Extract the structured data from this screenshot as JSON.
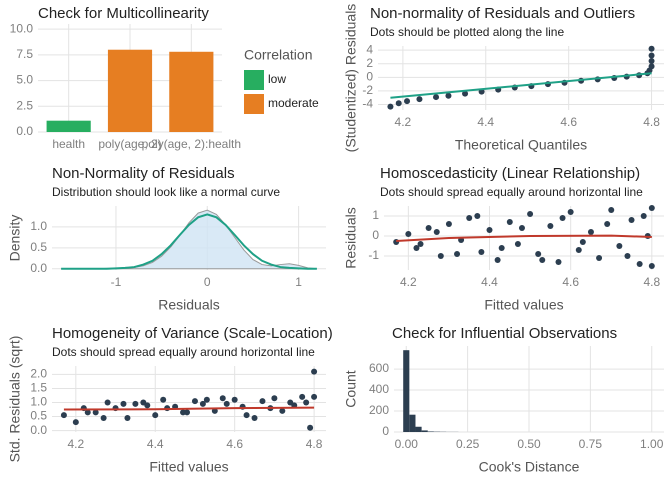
{
  "chart_data": [
    {
      "type": "bar",
      "title": "Check for Multicollinearity",
      "categories": [
        "health",
        "poly(age, 2)",
        "poly(age, 2):health"
      ],
      "series": [
        {
          "name": "low",
          "color": "#27ae60",
          "values": [
            1.1,
            null,
            null
          ]
        },
        {
          "name": "moderate",
          "color": "#e67e22",
          "values": [
            null,
            8.0,
            7.8
          ]
        }
      ],
      "legend_title": "Correlation",
      "ylim": [
        0,
        10.5
      ],
      "yticks": [
        {
          "value": 0,
          "label": "0.0"
        },
        {
          "value": 2.5,
          "label": "2.5"
        },
        {
          "value": 5,
          "label": "5.0"
        },
        {
          "value": 7.5,
          "label": "7.5"
        },
        {
          "value": 10,
          "label": "10.0"
        }
      ],
      "grid": true
    },
    {
      "type": "scatter",
      "title": "Non-normality of Residuals and Outliers",
      "subtitle": "Dots should be plotted along the line",
      "xlabel": "Theoretical Quantiles",
      "ylabel": "(Studentized) Residuals",
      "xlim": [
        4.14,
        4.83
      ],
      "ylim": [
        -4.8,
        4.6
      ],
      "xticks": [
        4.2,
        4.4,
        4.6,
        4.8
      ],
      "yticks": [
        -4,
        -2,
        0,
        2,
        4
      ],
      "grid": true,
      "series": [
        {
          "mode": "points",
          "color": "#2c3e50",
          "x": [
            4.17,
            4.19,
            4.21,
            4.24,
            4.28,
            4.31,
            4.35,
            4.39,
            4.43,
            4.47,
            4.51,
            4.55,
            4.59,
            4.63,
            4.67,
            4.71,
            4.74,
            4.77,
            4.79,
            4.795,
            4.8,
            4.8,
            4.8,
            4.8
          ],
          "y": [
            -4.3,
            -3.8,
            -3.5,
            -3.2,
            -2.9,
            -2.7,
            -2.4,
            -2.1,
            -1.8,
            -1.5,
            -1.3,
            -1.0,
            -0.8,
            -0.5,
            -0.3,
            -0.1,
            0.1,
            0.3,
            0.6,
            1.0,
            1.6,
            2.4,
            3.2,
            4.2
          ]
        },
        {
          "mode": "line",
          "color": "#1fa187",
          "x": [
            4.17,
            4.8
          ],
          "y": [
            -3.0,
            0.6
          ]
        }
      ]
    },
    {
      "type": "density",
      "title": "Non-Normality of Residuals",
      "subtitle": "Distribution should look like a normal curve",
      "xlabel": "Residuals",
      "ylabel": "Density",
      "xlim": [
        -1.7,
        1.3
      ],
      "ylim": [
        -0.03,
        1.5
      ],
      "xticks": [
        -1,
        0,
        1
      ],
      "yticks": [
        {
          "value": 0,
          "label": "0.0"
        },
        {
          "value": 0.5,
          "label": "0.5"
        },
        {
          "value": 1,
          "label": "1.0"
        }
      ],
      "grid": true,
      "x": [
        -1.6,
        -1.5,
        -1.4,
        -1.3,
        -1.2,
        -1.1,
        -1.0,
        -0.9,
        -0.8,
        -0.7,
        -0.6,
        -0.5,
        -0.4,
        -0.3,
        -0.2,
        -0.1,
        0,
        0.1,
        0.2,
        0.3,
        0.4,
        0.5,
        0.6,
        0.7,
        0.8,
        0.9,
        1.0,
        1.1,
        1.2
      ],
      "series": [
        {
          "color": "#9a9a9a",
          "fill": "#cfe3f4",
          "values": [
            0,
            0,
            0,
            0,
            0,
            0.01,
            0.01,
            0.02,
            0.03,
            0.07,
            0.15,
            0.3,
            0.52,
            0.8,
            1.1,
            1.33,
            1.4,
            1.3,
            1.05,
            0.75,
            0.45,
            0.22,
            0.1,
            0.07,
            0.1,
            0.12,
            0.08,
            0.02,
            0
          ]
        },
        {
          "color": "#1fa187",
          "values": [
            0,
            0,
            0,
            0,
            0,
            0,
            0.01,
            0.02,
            0.04,
            0.1,
            0.19,
            0.35,
            0.56,
            0.81,
            1.05,
            1.23,
            1.3,
            1.23,
            1.05,
            0.81,
            0.56,
            0.35,
            0.19,
            0.1,
            0.04,
            0.02,
            0.01,
            0,
            0
          ]
        }
      ]
    },
    {
      "type": "scatter",
      "title": "Homoscedasticity (Linear Relationship)",
      "subtitle": "Dots should spread equally around horizontal line",
      "xlabel": "Fitted values",
      "ylabel": "Residuals",
      "xlim": [
        4.14,
        4.83
      ],
      "ylim": [
        -1.7,
        1.5
      ],
      "xticks": [
        4.2,
        4.4,
        4.6,
        4.8
      ],
      "yticks": [
        -1,
        0,
        1
      ],
      "grid": true,
      "series": [
        {
          "mode": "points",
          "color": "#2c3e50",
          "x": [
            4.17,
            4.2,
            4.22,
            4.25,
            4.28,
            4.3,
            4.33,
            4.35,
            4.38,
            4.4,
            4.42,
            4.45,
            4.47,
            4.5,
            4.52,
            4.55,
            4.57,
            4.6,
            4.62,
            4.65,
            4.67,
            4.7,
            4.72,
            4.75,
            4.77,
            4.8,
            4.8,
            4.79,
            4.78,
            4.74,
            4.69,
            4.63,
            4.58,
            4.53,
            4.48,
            4.43,
            4.37,
            4.32,
            4.27,
            4.23
          ],
          "y": [
            -0.3,
            0.1,
            -0.6,
            0.4,
            -1.0,
            0.6,
            -0.2,
            0.9,
            -0.8,
            0.3,
            -1.2,
            0.7,
            -0.4,
            1.1,
            -0.9,
            0.5,
            -1.3,
            1.2,
            -0.7,
            0.2,
            -1.1,
            1.3,
            -0.5,
            0.8,
            -1.4,
            1.4,
            -1.5,
            0.0,
            1.0,
            -1.0,
            0.6,
            -0.3,
            0.9,
            -1.2,
            0.4,
            -0.6,
            1.0,
            -0.9,
            0.2,
            -0.4
          ]
        },
        {
          "mode": "line",
          "color": "#c0392b",
          "x": [
            4.17,
            4.3,
            4.5,
            4.7,
            4.8
          ],
          "y": [
            -0.25,
            -0.1,
            0,
            0.02,
            -0.05
          ]
        }
      ]
    },
    {
      "type": "scatter",
      "title": "Homogeneity of Variance (Scale-Location)",
      "subtitle": "Dots should spread equally around horizontal line",
      "xlabel": "Fitted values",
      "ylabel": "Std. Residuals (sqrt)",
      "xlim": [
        4.14,
        4.83
      ],
      "ylim": [
        -0.05,
        2.3
      ],
      "xticks": [
        4.2,
        4.4,
        4.6,
        4.8
      ],
      "yticks": [
        {
          "value": 0,
          "label": "0.0"
        },
        {
          "value": 0.5,
          "label": "0.5"
        },
        {
          "value": 1,
          "label": "1.0"
        },
        {
          "value": 1.5,
          "label": "1.5"
        },
        {
          "value": 2,
          "label": "2.0"
        }
      ],
      "grid": true,
      "series": [
        {
          "mode": "points",
          "color": "#2c3e50",
          "x": [
            4.17,
            4.2,
            4.22,
            4.25,
            4.28,
            4.3,
            4.33,
            4.35,
            4.38,
            4.4,
            4.42,
            4.45,
            4.47,
            4.5,
            4.52,
            4.55,
            4.57,
            4.6,
            4.62,
            4.65,
            4.67,
            4.7,
            4.72,
            4.75,
            4.77,
            4.8,
            4.8,
            4.79,
            4.78,
            4.74,
            4.69,
            4.63,
            4.58,
            4.53,
            4.48,
            4.43,
            4.37,
            4.32,
            4.27,
            4.23
          ],
          "y": [
            0.55,
            0.3,
            0.8,
            0.65,
            1.0,
            0.8,
            0.45,
            0.95,
            0.9,
            0.55,
            1.1,
            0.85,
            0.65,
            1.05,
            0.95,
            0.7,
            1.15,
            1.1,
            0.85,
            0.45,
            1.05,
            1.15,
            0.7,
            0.9,
            1.2,
            1.2,
            2.1,
            0.1,
            1.0,
            1.0,
            0.8,
            0.55,
            0.95,
            1.1,
            0.65,
            0.8,
            1.0,
            0.95,
            0.45,
            0.65
          ]
        },
        {
          "mode": "line",
          "color": "#c0392b",
          "x": [
            4.17,
            4.4,
            4.6,
            4.8
          ],
          "y": [
            0.75,
            0.76,
            0.8,
            0.82
          ]
        }
      ]
    },
    {
      "type": "histogram",
      "title": "Check for Influential Observations",
      "xlabel": "Cook's Distance",
      "ylabel": "Count",
      "color": "#2c3e50",
      "bins": [
        -0.0125,
        0.0125,
        0.0375,
        0.0625,
        0.0875,
        0.1125,
        0.1375,
        0.1625,
        0.1875,
        0.2125
      ],
      "values": [
        780,
        165,
        50,
        15,
        5,
        3,
        2,
        1,
        1
      ],
      "xlim": [
        -0.05,
        1.05
      ],
      "ylim": [
        0,
        820
      ],
      "xticks": [
        {
          "value": 0,
          "label": "0.00"
        },
        {
          "value": 0.25,
          "label": "0.25"
        },
        {
          "value": 0.5,
          "label": "0.50"
        },
        {
          "value": 0.75,
          "label": "0.75"
        },
        {
          "value": 1,
          "label": "1.00"
        }
      ],
      "yticks": [
        0,
        200,
        400,
        600
      ],
      "grid": true
    }
  ]
}
